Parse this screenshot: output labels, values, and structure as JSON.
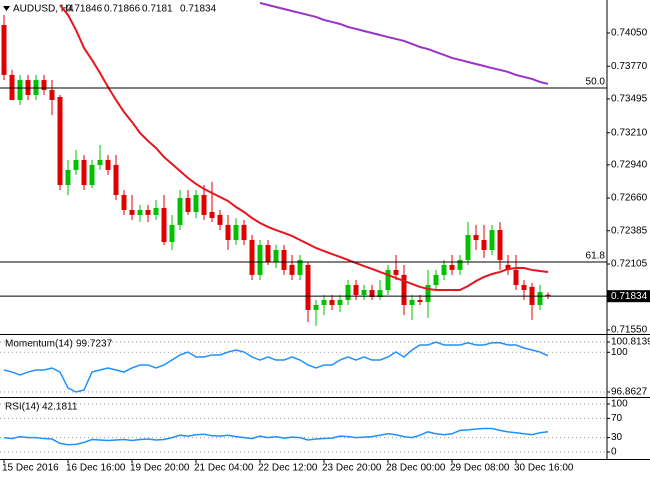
{
  "chart_data": [
    {
      "type": "candlestick",
      "title": "AUDUSD, H4",
      "categories": [
        "15 Dec 2016",
        null,
        null,
        null,
        null,
        null,
        null,
        null,
        "16 Dec 16:00",
        null,
        null,
        null,
        null,
        null,
        null,
        null,
        "19 Dec 20:00",
        null,
        null,
        null,
        null,
        null,
        null,
        null,
        "21 Dec 04:00",
        null,
        null,
        null,
        null,
        null,
        null,
        null,
        "22 Dec 12:00",
        null,
        null,
        null,
        null,
        null,
        null,
        null,
        "23 Dec 20:00",
        null,
        null,
        null,
        null,
        null,
        null,
        null,
        "28 Dec 00:00",
        null,
        null,
        null,
        null,
        null,
        null,
        null,
        "29 Dec 08:00",
        null,
        null,
        null,
        null,
        null,
        null,
        null,
        "30 Dec 16:00",
        null,
        null,
        null,
        null
      ],
      "open": [
        0.74117,
        0.73697,
        0.73486,
        0.73654,
        0.73528,
        0.73654,
        0.7357,
        0.73511,
        0.7277,
        0.72897,
        0.72981,
        0.7277,
        0.72939,
        0.72981,
        0.72939,
        0.72686,
        0.7256,
        0.72518,
        0.7256,
        0.72518,
        0.72577,
        0.7229,
        0.72434,
        0.72661,
        0.72543,
        0.72686,
        0.72543,
        0.72518,
        0.72434,
        0.72307,
        0.72434,
        0.72307,
        0.72013,
        0.72265,
        0.72122,
        0.72223,
        0.72097,
        0.72013,
        0.72097,
        0.71718,
        0.7176,
        0.71802,
        0.7176,
        0.71802,
        0.71928,
        0.71844,
        0.71886,
        0.71827,
        0.71886,
        0.72055,
        0.72013,
        0.7176,
        0.71802,
        0.71785,
        0.71928,
        0.72013,
        0.72097,
        0.72055,
        0.72139,
        0.72349,
        0.72307,
        0.72223,
        0.72391,
        0.72097,
        0.72055,
        0.71928,
        0.71912,
        0.7176,
        0.71846
      ],
      "high": [
        0.74202,
        0.73739,
        0.73697,
        0.73697,
        0.73697,
        0.73697,
        0.73654,
        0.73528,
        0.72981,
        0.73065,
        0.73023,
        0.72981,
        0.73107,
        0.73023,
        0.73023,
        0.72728,
        0.72686,
        0.72602,
        0.72602,
        0.72644,
        0.72686,
        0.72518,
        0.72728,
        0.72728,
        0.72728,
        0.7277,
        0.72796,
        0.7256,
        0.72518,
        0.72492,
        0.72476,
        0.72349,
        0.72307,
        0.72307,
        0.72265,
        0.72265,
        0.72181,
        0.72181,
        0.72122,
        0.71802,
        0.71844,
        0.71844,
        0.71844,
        0.7197,
        0.7197,
        0.71928,
        0.71928,
        0.7197,
        0.72097,
        0.72181,
        0.72097,
        0.71844,
        0.71844,
        0.72055,
        0.72055,
        0.72139,
        0.72181,
        0.72181,
        0.72459,
        0.72434,
        0.72434,
        0.72434,
        0.72459,
        0.72181,
        0.72181,
        0.7197,
        0.71945,
        0.71928,
        0.71866
      ],
      "low": [
        0.73654,
        0.73486,
        0.73444,
        0.73486,
        0.73486,
        0.73528,
        0.7336,
        0.72728,
        0.72686,
        0.72855,
        0.72728,
        0.72745,
        0.72897,
        0.72855,
        0.72644,
        0.72518,
        0.72476,
        0.72459,
        0.72459,
        0.72476,
        0.72265,
        0.72223,
        0.72391,
        0.72518,
        0.72492,
        0.72476,
        0.72459,
        0.72391,
        0.72223,
        0.72265,
        0.72265,
        0.7197,
        0.7197,
        0.72097,
        0.72071,
        0.72013,
        0.7197,
        0.7197,
        0.71617,
        0.71583,
        0.71676,
        0.71718,
        0.71701,
        0.7176,
        0.71802,
        0.71802,
        0.71802,
        0.71802,
        0.71844,
        0.7197,
        0.71676,
        0.71634,
        0.7176,
        0.7165,
        0.71886,
        0.7197,
        0.72013,
        0.72013,
        0.72097,
        0.72223,
        0.72156,
        0.72181,
        0.72055,
        0.72013,
        0.71886,
        0.71802,
        0.71634,
        0.71718,
        0.7181
      ],
      "close": [
        0.73697,
        0.73486,
        0.73654,
        0.73528,
        0.73654,
        0.7357,
        0.73486,
        0.7277,
        0.72897,
        0.72981,
        0.7277,
        0.72939,
        0.72981,
        0.72897,
        0.72686,
        0.7256,
        0.72518,
        0.7256,
        0.72518,
        0.72577,
        0.7229,
        0.72434,
        0.72661,
        0.72543,
        0.72686,
        0.72518,
        0.72492,
        0.72434,
        0.72307,
        0.72434,
        0.72307,
        0.72013,
        0.72265,
        0.72122,
        0.72223,
        0.72055,
        0.72013,
        0.72139,
        0.71718,
        0.7176,
        0.71802,
        0.7176,
        0.71802,
        0.71928,
        0.71844,
        0.71886,
        0.71827,
        0.71886,
        0.72055,
        0.72013,
        0.7176,
        0.71802,
        0.71785,
        0.71928,
        0.72013,
        0.72097,
        0.72055,
        0.72139,
        0.72349,
        0.72307,
        0.72223,
        0.72391,
        0.72139,
        0.72055,
        0.71928,
        0.71886,
        0.7176,
        0.71869,
        0.71834
      ],
      "up_color": "#00c000",
      "down_color": "#e00000",
      "lines": [
        {
          "color": "#e8141e",
          "values": [
            null,
            null,
            null,
            null,
            null,
            null,
            null,
            0.74286,
            0.74202,
            0.74075,
            0.73924,
            0.73823,
            0.73713,
            0.73595,
            0.73486,
            0.73385,
            0.73301,
            0.73208,
            0.73141,
            0.73082,
            0.73006,
            0.72947,
            0.72888,
            0.72829,
            0.72779,
            0.72737,
            0.72703,
            0.72669,
            0.72636,
            0.72585,
            0.72543,
            0.72492,
            0.7245,
            0.72417,
            0.72391,
            0.72366,
            0.72341,
            0.72307,
            0.72274,
            0.7224,
            0.72214,
            0.72189,
            0.72164,
            0.72139,
            0.72113,
            0.72088,
            0.72063,
            0.72038,
            0.72013,
            0.71987,
            0.71962,
            0.71937,
            0.71912,
            0.71895,
            0.71886,
            0.71886,
            0.71886,
            0.71886,
            0.7192,
            0.71962,
            0.71996,
            0.72021,
            0.72038,
            0.72063,
            0.72071,
            0.72071,
            0.72055,
            0.72046,
            0.72038
          ]
        },
        {
          "color": "#9932cc",
          "values": [
            null,
            null,
            null,
            null,
            null,
            null,
            null,
            null,
            null,
            null,
            null,
            null,
            null,
            null,
            null,
            null,
            null,
            null,
            null,
            null,
            null,
            null,
            null,
            null,
            null,
            null,
            null,
            null,
            null,
            null,
            null,
            null,
            0.74303,
            0.74286,
            0.74269,
            0.74252,
            0.74235,
            0.74219,
            0.74202,
            0.74185,
            0.7416,
            0.74143,
            0.74126,
            0.74101,
            0.74084,
            0.74067,
            0.7405,
            0.74033,
            0.74016,
            0.74,
            0.73983,
            0.73958,
            0.73932,
            0.73915,
            0.7389,
            0.73865,
            0.7384,
            0.73823,
            0.73806,
            0.73789,
            0.73772,
            0.73755,
            0.73739,
            0.73722,
            0.73697,
            0.7368,
            0.73663,
            0.73638,
            0.73621
          ]
        }
      ],
      "levels": [
        {
          "label": "50.0",
          "value": 0.73587
        },
        {
          "label": "61.8",
          "value": 0.72122
        }
      ],
      "ylim": [
        0.71524,
        0.74311
      ],
      "yticks": [
        {
          "value": 0.7405,
          "label": "0.74050"
        },
        {
          "value": 0.7377,
          "label": "0.73770"
        },
        0.73495,
        {
          "value": 0.7321,
          "label": "0.73210"
        },
        {
          "value": 0.7294,
          "label": "0.72940"
        },
        {
          "value": 0.7266,
          "label": "0.72660"
        },
        0.72385,
        0.72105,
        {
          "value": 0.7155,
          "label": "0.71550"
        }
      ]
    },
    {
      "type": "line",
      "title": "Momentum(14)",
      "color": "#1e90ff",
      "values": [
        98.6,
        98.44,
        98.21,
        98.44,
        98.6,
        98.6,
        98.76,
        98.44,
        97.18,
        96.8627,
        97.02,
        98.44,
        98.6,
        98.76,
        98.6,
        98.44,
        98.76,
        99.0,
        99.0,
        98.76,
        99.0,
        99.39,
        99.79,
        100.02,
        99.63,
        99.63,
        99.79,
        99.79,
        100.02,
        100.18,
        100.02,
        99.63,
        99.39,
        99.63,
        99.39,
        99.39,
        99.63,
        99.39,
        99.0,
        98.76,
        99.0,
        99.0,
        99.39,
        99.63,
        99.39,
        99.63,
        99.39,
        99.39,
        99.63,
        100.02,
        99.63,
        100.18,
        100.58,
        100.58,
        100.8139,
        100.58,
        100.58,
        100.58,
        100.75,
        100.58,
        100.58,
        100.75,
        100.75,
        100.58,
        100.58,
        100.34,
        100.18,
        100.02,
        99.7237
      ],
      "ylim": [
        96.8627,
        100.8139
      ],
      "yticks": [
        96.8627,
        100,
        100.8139
      ],
      "grid": "dotted"
    },
    {
      "type": "line",
      "title": "RSI(14)",
      "color": "#1e90ff",
      "values": [
        30,
        28,
        32,
        30,
        30,
        28,
        27,
        18,
        15,
        16,
        20,
        26,
        25,
        24,
        25,
        26,
        24,
        26,
        27,
        25,
        26,
        30,
        35,
        33,
        36,
        37,
        34,
        33,
        35,
        32,
        30,
        28,
        33,
        30,
        32,
        29,
        31,
        30,
        25,
        27,
        28,
        29,
        33,
        32,
        30,
        31,
        32,
        35,
        38,
        36,
        32,
        30,
        35,
        42,
        38,
        36,
        38,
        45,
        46,
        48,
        49,
        49,
        45,
        42,
        40,
        38,
        36,
        40,
        42.1811
      ],
      "ylim": [
        0,
        100
      ],
      "yticks": [
        0,
        30,
        70,
        100
      ],
      "grid": "dotted"
    }
  ]
}
